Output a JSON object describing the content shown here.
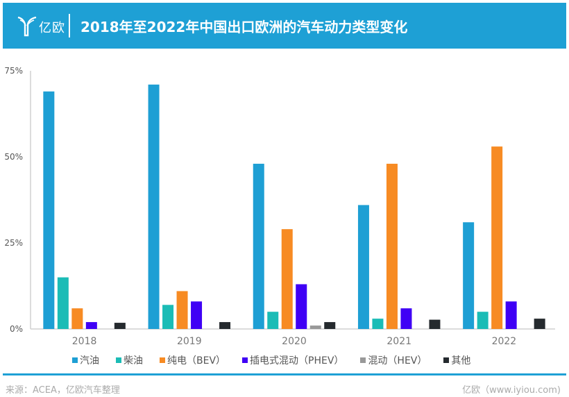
{
  "header": {
    "logo_text": "亿欧",
    "title": "2018年至2022年中国出口欧洲的汽车动力类型变化"
  },
  "chart_data": {
    "type": "bar",
    "title": "2018年至2022年中国出口欧洲的汽车动力类型变化",
    "xlabel": "",
    "ylabel": "",
    "categories": [
      "2018",
      "2019",
      "2020",
      "2021",
      "2022"
    ],
    "ylim": [
      0,
      75
    ],
    "yticks": [
      0,
      25,
      50,
      75
    ],
    "ytick_labels": [
      "0%",
      "25%",
      "50%",
      "75%"
    ],
    "grid": false,
    "legend_position": "bottom",
    "series": [
      {
        "name": "汽油",
        "color": "#1e9fd4",
        "values": [
          69,
          71,
          48,
          36,
          31
        ]
      },
      {
        "name": "柴油",
        "color": "#1bbcb6",
        "values": [
          15,
          7,
          5,
          3,
          5
        ]
      },
      {
        "name": "纯电（BEV）",
        "color": "#f78b23",
        "values": [
          6,
          11,
          29,
          48,
          53
        ]
      },
      {
        "name": "插电式混动（PHEV）",
        "color": "#3f00f5",
        "values": [
          2,
          8,
          13,
          6,
          8
        ]
      },
      {
        "name": "混动（HEV）",
        "color": "#999999",
        "values": [
          0,
          0,
          1,
          0,
          0
        ]
      },
      {
        "name": "其他",
        "color": "#252a2e",
        "values": [
          1.8,
          2,
          2,
          2.7,
          3
        ]
      }
    ]
  },
  "footer": {
    "source": "来源：ACEA，亿欧汽车整理",
    "credit": "亿欧（www.iyiou.com)"
  }
}
